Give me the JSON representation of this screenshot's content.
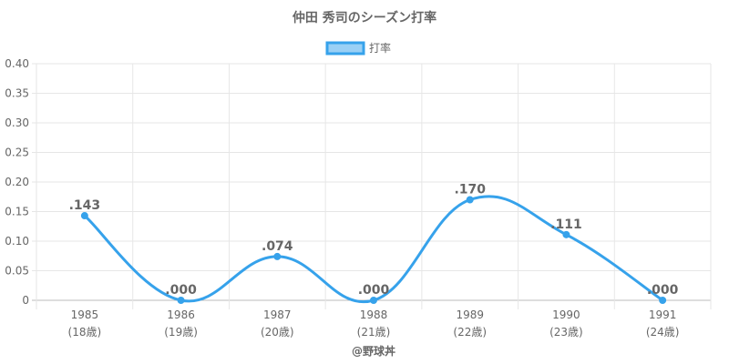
{
  "chart_data": {
    "type": "line",
    "title": "仲田 秀司のシーズン打率",
    "legend": {
      "label": "打率",
      "position": "top"
    },
    "categories": [
      "1985",
      "1986",
      "1987",
      "1988",
      "1989",
      "1990",
      "1991"
    ],
    "sublabels": [
      "(18歳)",
      "(19歳)",
      "(20歳)",
      "(21歳)",
      "(22歳)",
      "(23歳)",
      "(24歳)"
    ],
    "series": [
      {
        "name": "打率",
        "values": [
          0.143,
          0.0,
          0.074,
          0.0,
          0.17,
          0.111,
          0.0
        ]
      }
    ],
    "data_labels": [
      ".143",
      ".000",
      ".074",
      ".000",
      ".170",
      ".111",
      ".000"
    ],
    "ylim": [
      0,
      0.4
    ],
    "yticks": [
      "0",
      "0.05",
      "0.10",
      "0.15",
      "0.20",
      "0.25",
      "0.30",
      "0.35",
      "0.40"
    ],
    "grid": true,
    "footer": "@野球丼",
    "colors": {
      "line": "#36a2eb",
      "fill": "#9ad0f5",
      "grid": "#e6e6e6",
      "text": "#666666"
    }
  }
}
